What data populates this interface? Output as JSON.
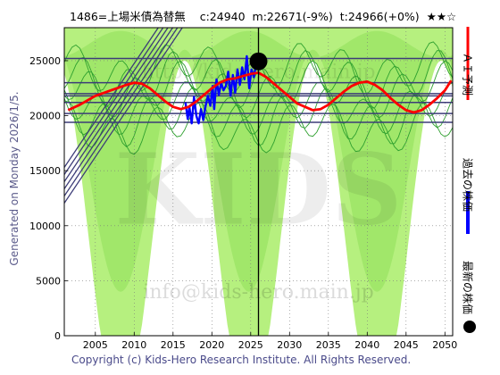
{
  "header": {
    "code_name": "1486=上場米債為替無",
    "close": "c:24940",
    "ma": "m:22671(-9%)",
    "target": "t:24966(+0%)",
    "stars": "★★☆"
  },
  "side_label": "Generated on Monday 2026/1/5.",
  "watermarks": {
    "top": "http://kids-hero.main.jp",
    "middle": "KIDS",
    "bottom": "info@kids-hero.main.jp"
  },
  "copyright": "Copyright (c) Kids-Hero Research Institute. All Rights Reserved.",
  "legend": [
    {
      "label": "ＡＩ予測",
      "color": "#ff0000",
      "shape": "line"
    },
    {
      "label": "過去の株価",
      "color": "#0000ff",
      "shape": "line"
    },
    {
      "label": "最新の株価",
      "color": "#000000",
      "shape": "dot"
    }
  ],
  "chart_data": {
    "type": "line",
    "xlim": [
      2001,
      2051
    ],
    "ylim": [
      0,
      28000
    ],
    "x_ticks": [
      2005,
      2010,
      2015,
      2020,
      2025,
      2030,
      2035,
      2040,
      2045,
      2050
    ],
    "y_ticks": [
      0,
      5000,
      10000,
      15000,
      20000,
      25000
    ],
    "latest": {
      "x": 2026.0,
      "y": 24940
    },
    "vertical_marker_x": 2026.0,
    "horizontal_levels": [
      25200,
      23000,
      22000,
      21800,
      21200,
      20200,
      19400
    ],
    "series": [
      {
        "color": "#0000ff",
        "points": [
          [
            2016.6,
            21200
          ],
          [
            2016.9,
            19700
          ],
          [
            2017.1,
            20800
          ],
          [
            2017.4,
            19300
          ],
          [
            2017.7,
            21700
          ],
          [
            2018.0,
            20000
          ],
          [
            2018.3,
            19300
          ],
          [
            2018.6,
            20600
          ],
          [
            2018.9,
            19600
          ],
          [
            2019.2,
            20900
          ],
          [
            2019.5,
            21800
          ],
          [
            2019.8,
            20900
          ],
          [
            2020.1,
            22700
          ],
          [
            2020.3,
            20600
          ],
          [
            2020.6,
            23300
          ],
          [
            2020.9,
            21900
          ],
          [
            2021.2,
            23000
          ],
          [
            2021.5,
            22300
          ],
          [
            2021.8,
            22700
          ],
          [
            2022.1,
            24000
          ],
          [
            2022.4,
            21800
          ],
          [
            2022.7,
            23700
          ],
          [
            2023.0,
            22100
          ],
          [
            2023.3,
            24200
          ],
          [
            2023.6,
            22800
          ],
          [
            2023.9,
            24400
          ],
          [
            2024.2,
            23300
          ],
          [
            2024.5,
            25400
          ],
          [
            2024.8,
            22500
          ],
          [
            2025.1,
            24200
          ],
          [
            2025.4,
            23500
          ],
          [
            2025.7,
            24700
          ],
          [
            2026.0,
            24940
          ]
        ]
      },
      {
        "color": "#ff0000",
        "points": [
          [
            2001.5,
            20500
          ],
          [
            2003,
            21000
          ],
          [
            2005,
            21800
          ],
          [
            2007,
            22300
          ],
          [
            2009,
            22800
          ],
          [
            2010,
            23000
          ],
          [
            2011,
            22900
          ],
          [
            2012,
            22500
          ],
          [
            2013,
            21900
          ],
          [
            2014,
            21300
          ],
          [
            2015,
            20800
          ],
          [
            2016,
            20600
          ],
          [
            2017,
            20800
          ],
          [
            2018,
            21300
          ],
          [
            2019,
            21900
          ],
          [
            2020,
            22500
          ],
          [
            2021,
            23000
          ],
          [
            2022,
            23300
          ],
          [
            2023,
            23400
          ],
          [
            2024,
            23600
          ],
          [
            2025,
            23800
          ],
          [
            2026,
            23900
          ],
          [
            2027,
            23500
          ],
          [
            2028,
            22900
          ],
          [
            2029,
            22300
          ],
          [
            2030,
            21700
          ],
          [
            2031,
            21100
          ],
          [
            2032,
            20800
          ],
          [
            2033,
            20500
          ],
          [
            2034,
            20600
          ],
          [
            2035,
            21000
          ],
          [
            2036,
            21600
          ],
          [
            2037,
            22200
          ],
          [
            2038,
            22700
          ],
          [
            2039,
            23000
          ],
          [
            2040,
            23100
          ],
          [
            2041,
            22800
          ],
          [
            2042,
            22300
          ],
          [
            2043,
            21600
          ],
          [
            2044,
            21000
          ],
          [
            2045,
            20500
          ],
          [
            2046,
            20300
          ],
          [
            2047,
            20500
          ],
          [
            2048,
            21000
          ],
          [
            2049,
            21600
          ],
          [
            2050,
            22300
          ],
          [
            2050.8,
            23200
          ]
        ]
      }
    ]
  }
}
